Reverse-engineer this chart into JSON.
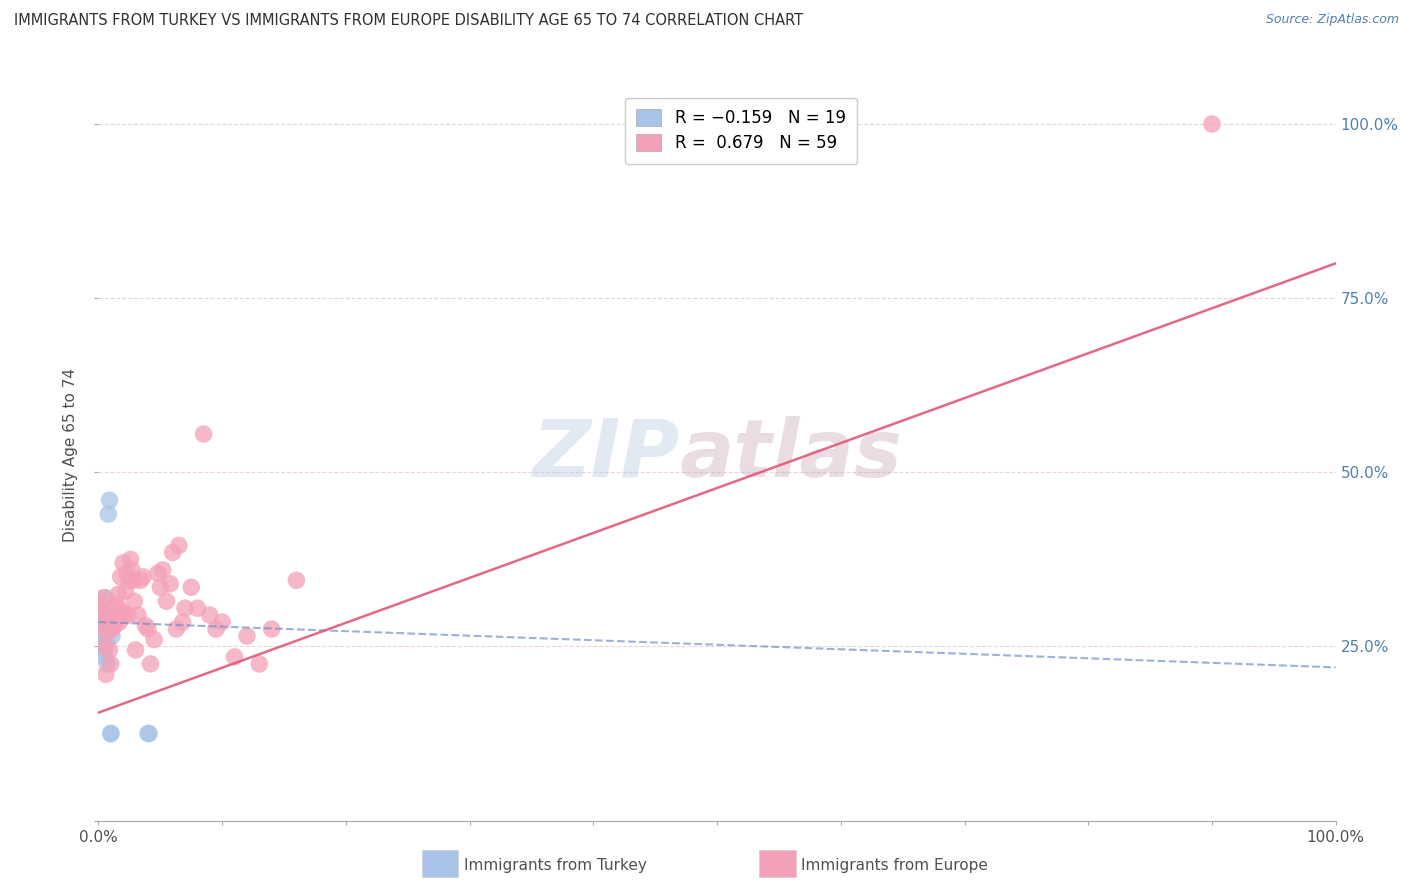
{
  "title": "IMMIGRANTS FROM TURKEY VS IMMIGRANTS FROM EUROPE DISABILITY AGE 65 TO 74 CORRELATION CHART",
  "source": "Source: ZipAtlas.com",
  "ylabel": "Disability Age 65 to 74",
  "watermark_zip": "ZIP",
  "watermark_atlas": "atlas",
  "legend_label_turkey": "Immigrants from Turkey",
  "legend_label_europe": "Immigrants from Europe",
  "turkey_color": "#a8c4e8",
  "europe_color": "#f4a0b8",
  "turkey_line_color": "#7090c8",
  "europe_line_color": "#e05878",
  "background_color": "#ffffff",
  "grid_color": "#e8d0d8",
  "ytick_color": "#5080b0",
  "xtick_color": "#505050",
  "title_color": "#303030",
  "source_color": "#5080b0",
  "xlim": [
    0.0,
    1.0
  ],
  "ylim": [
    0.0,
    1.05
  ],
  "yticks": [
    0.0,
    0.25,
    0.5,
    0.75,
    1.0
  ],
  "ytick_labels": [
    "",
    "25.0%",
    "50.0%",
    "75.0%",
    "100.0%"
  ],
  "xticks": [
    0.0,
    0.1,
    0.2,
    0.3,
    0.4,
    0.5,
    0.6,
    0.7,
    0.8,
    0.9,
    1.0
  ],
  "xtick_labels": [
    "0.0%",
    "",
    "",
    "",
    "",
    "",
    "",
    "",
    "",
    "",
    "100.0%"
  ],
  "turkey_x": [
    0.001,
    0.002,
    0.003,
    0.003,
    0.004,
    0.004,
    0.005,
    0.005,
    0.006,
    0.006,
    0.007,
    0.007,
    0.008,
    0.009,
    0.01,
    0.01,
    0.011,
    0.04,
    0.041
  ],
  "turkey_y": [
    0.275,
    0.3,
    0.255,
    0.285,
    0.265,
    0.295,
    0.245,
    0.235,
    0.32,
    0.275,
    0.225,
    0.255,
    0.44,
    0.46,
    0.125,
    0.125,
    0.265,
    0.125,
    0.125
  ],
  "europe_x": [
    0.001,
    0.002,
    0.003,
    0.004,
    0.005,
    0.006,
    0.007,
    0.008,
    0.009,
    0.01,
    0.011,
    0.012,
    0.013,
    0.014,
    0.015,
    0.016,
    0.017,
    0.018,
    0.019,
    0.02,
    0.021,
    0.022,
    0.023,
    0.024,
    0.025,
    0.026,
    0.027,
    0.028,
    0.029,
    0.03,
    0.032,
    0.034,
    0.036,
    0.038,
    0.04,
    0.042,
    0.045,
    0.048,
    0.05,
    0.052,
    0.055,
    0.058,
    0.06,
    0.063,
    0.065,
    0.068,
    0.07,
    0.075,
    0.08,
    0.085,
    0.09,
    0.095,
    0.1,
    0.11,
    0.12,
    0.13,
    0.14,
    0.16,
    0.9
  ],
  "europe_y": [
    0.28,
    0.31,
    0.3,
    0.32,
    0.25,
    0.21,
    0.27,
    0.29,
    0.245,
    0.225,
    0.275,
    0.285,
    0.28,
    0.305,
    0.31,
    0.325,
    0.285,
    0.35,
    0.3,
    0.37,
    0.295,
    0.33,
    0.355,
    0.295,
    0.345,
    0.375,
    0.36,
    0.345,
    0.315,
    0.245,
    0.295,
    0.345,
    0.35,
    0.28,
    0.275,
    0.225,
    0.26,
    0.355,
    0.335,
    0.36,
    0.315,
    0.34,
    0.385,
    0.275,
    0.395,
    0.285,
    0.305,
    0.335,
    0.305,
    0.555,
    0.295,
    0.275,
    0.285,
    0.235,
    0.265,
    0.225,
    0.275,
    0.345,
    1.0
  ],
  "turkey_trend_x": [
    0.0,
    1.0
  ],
  "turkey_trend_y": [
    0.285,
    0.22
  ],
  "europe_trend_x": [
    0.0,
    1.0
  ],
  "europe_trend_y": [
    0.155,
    0.8
  ]
}
